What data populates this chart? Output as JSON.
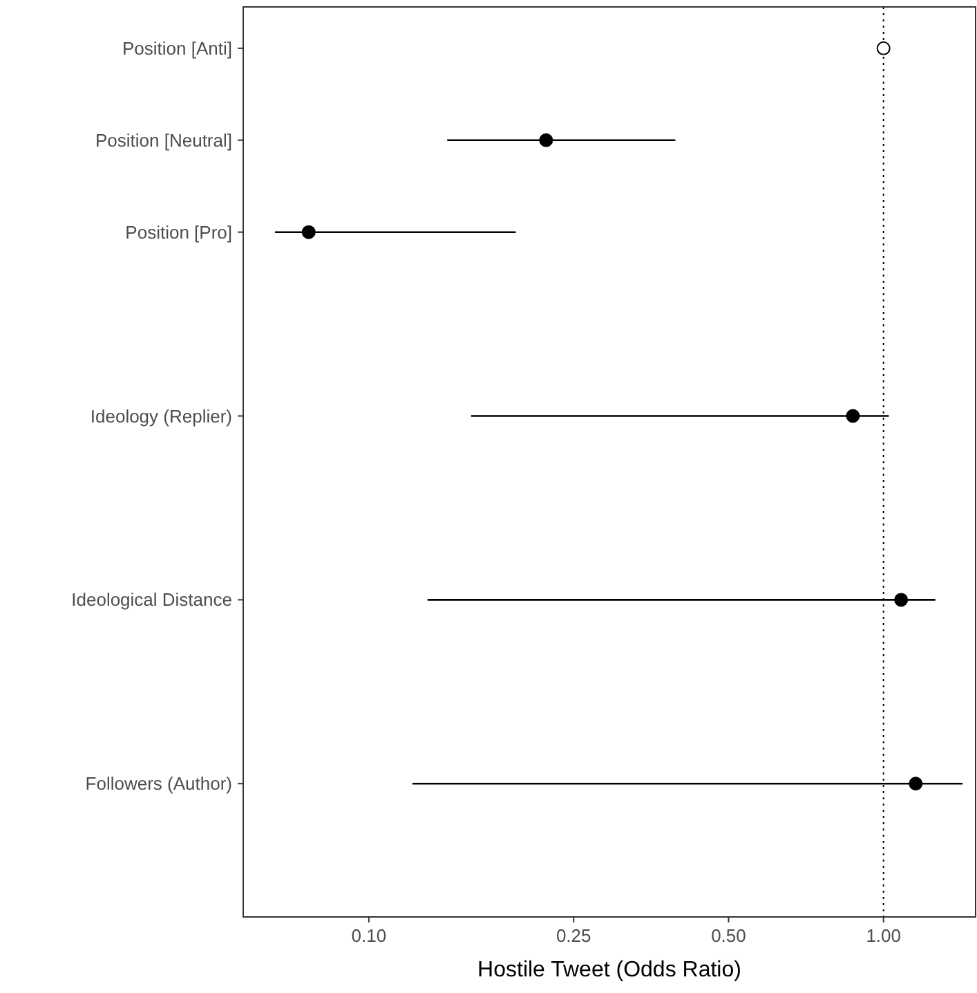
{
  "chart_data": {
    "type": "scatter",
    "orientation": "horizontal",
    "xlabel": "Hostile Tweet (Odds Ratio)",
    "categories": [
      "Position [Anti]",
      "Position [Neutral]",
      "Position [Pro]",
      null,
      "Ideology (Replier)",
      null,
      "Ideological Distance",
      null,
      "Followers (Author)",
      null
    ],
    "values": [
      1.0,
      0.221,
      0.0764,
      null,
      0.872,
      null,
      1.082,
      null,
      1.155,
      null
    ],
    "errors": [
      null,
      [
        0.142,
        0.394
      ],
      [
        0.0657,
        0.193
      ],
      null,
      [
        0.158,
        1.024
      ],
      null,
      [
        0.13,
        1.261
      ],
      null,
      [
        0.1215,
        1.424
      ],
      null
    ],
    "colors": [
      "#ffffff",
      "#000000",
      "#000000",
      null,
      "#000000",
      null,
      "#000000",
      null,
      "#000000",
      null
    ],
    "xlim": [
      0.057,
      1.51
    ],
    "xticks": [
      {
        "value": 0.1,
        "label": "0.10"
      },
      {
        "value": 0.25,
        "label": "0.25"
      },
      {
        "value": 0.5,
        "label": "0.50"
      },
      {
        "value": 1,
        "label": "1.00"
      }
    ],
    "log": "x",
    "grid": false,
    "marker": "circle",
    "ref_lines": [
      {
        "axis": "x",
        "value": 1,
        "label": null,
        "color": "#000000",
        "line_style": "dotted"
      }
    ]
  }
}
